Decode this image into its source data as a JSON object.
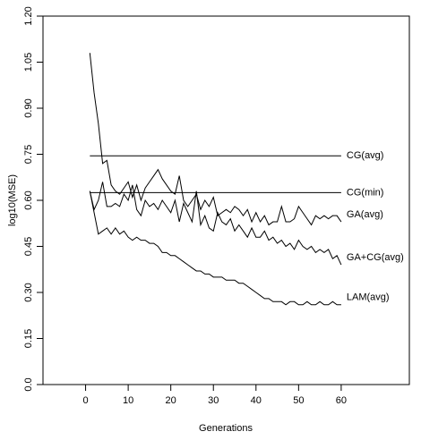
{
  "chart_data": {
    "type": "line",
    "xlabel": "Generations",
    "ylabel": "log10(MSE)",
    "x": [
      1,
      2,
      3,
      4,
      5,
      6,
      7,
      8,
      9,
      10,
      11,
      12,
      13,
      14,
      15,
      16,
      17,
      18,
      19,
      20,
      21,
      22,
      23,
      24,
      25,
      26,
      27,
      28,
      29,
      30,
      31,
      32,
      33,
      34,
      35,
      36,
      37,
      38,
      39,
      40,
      41,
      42,
      43,
      44,
      45,
      46,
      47,
      48,
      49,
      50,
      51,
      52,
      53,
      54,
      55,
      56,
      57,
      58,
      59,
      60
    ],
    "xlim": [
      -10,
      76
    ],
    "xticks": [
      0,
      10,
      20,
      30,
      40,
      50,
      60
    ],
    "ylim": [
      0,
      1.2
    ],
    "yticks": [
      {
        "value": 0,
        "label": "0.0"
      },
      0.15,
      {
        "value": 0.3,
        "label": "0.30"
      },
      0.45,
      {
        "value": 0.6,
        "label": "0.60"
      },
      0.75,
      {
        "value": 0.9,
        "label": "0.90"
      },
      1.05,
      {
        "value": 1.2,
        "label": "1.20"
      }
    ],
    "color": "#000000",
    "series": [
      {
        "name": "CG(avg)",
        "x": [
          1,
          60
        ],
        "values": [
          0.745,
          0.745
        ]
      },
      {
        "name": "CG(min)",
        "x": [
          1,
          60
        ],
        "values": [
          0.625,
          0.625
        ]
      },
      {
        "name": "GA(avg)",
        "values": [
          1.08,
          0.95,
          0.85,
          0.72,
          0.73,
          0.65,
          0.63,
          0.62,
          0.64,
          0.66,
          0.61,
          0.65,
          0.6,
          0.64,
          0.66,
          0.68,
          0.7,
          0.67,
          0.65,
          0.63,
          0.62,
          0.68,
          0.6,
          0.58,
          0.6,
          0.62,
          0.57,
          0.6,
          0.58,
          0.61,
          0.55,
          0.56,
          0.57,
          0.56,
          0.58,
          0.57,
          0.55,
          0.57,
          0.53,
          0.56,
          0.53,
          0.55,
          0.52,
          0.53,
          0.53,
          0.58,
          0.53,
          0.53,
          0.54,
          0.58,
          0.56,
          0.54,
          0.52,
          0.55,
          0.54,
          0.55,
          0.54,
          0.55,
          0.55,
          0.53
        ]
      },
      {
        "name": "GA+CG(avg)",
        "values": [
          0.63,
          0.57,
          0.6,
          0.66,
          0.58,
          0.58,
          0.59,
          0.58,
          0.62,
          0.6,
          0.65,
          0.57,
          0.55,
          0.6,
          0.58,
          0.59,
          0.57,
          0.6,
          0.58,
          0.56,
          0.6,
          0.53,
          0.59,
          0.56,
          0.53,
          0.63,
          0.52,
          0.55,
          0.51,
          0.5,
          0.56,
          0.53,
          0.52,
          0.54,
          0.5,
          0.52,
          0.5,
          0.48,
          0.51,
          0.48,
          0.48,
          0.5,
          0.47,
          0.48,
          0.46,
          0.47,
          0.45,
          0.46,
          0.44,
          0.47,
          0.45,
          0.44,
          0.45,
          0.43,
          0.44,
          0.43,
          0.44,
          0.41,
          0.42,
          0.39
        ]
      },
      {
        "name": "LAM(avg)",
        "values": [
          0.63,
          0.56,
          0.49,
          0.5,
          0.51,
          0.49,
          0.51,
          0.49,
          0.5,
          0.48,
          0.47,
          0.48,
          0.47,
          0.47,
          0.46,
          0.46,
          0.45,
          0.43,
          0.43,
          0.42,
          0.42,
          0.41,
          0.4,
          0.39,
          0.38,
          0.37,
          0.37,
          0.36,
          0.36,
          0.35,
          0.35,
          0.35,
          0.34,
          0.34,
          0.34,
          0.33,
          0.33,
          0.32,
          0.31,
          0.3,
          0.29,
          0.28,
          0.28,
          0.27,
          0.27,
          0.27,
          0.26,
          0.27,
          0.27,
          0.26,
          0.26,
          0.27,
          0.26,
          0.26,
          0.27,
          0.26,
          0.26,
          0.27,
          0.26,
          0.26
        ]
      }
    ]
  }
}
